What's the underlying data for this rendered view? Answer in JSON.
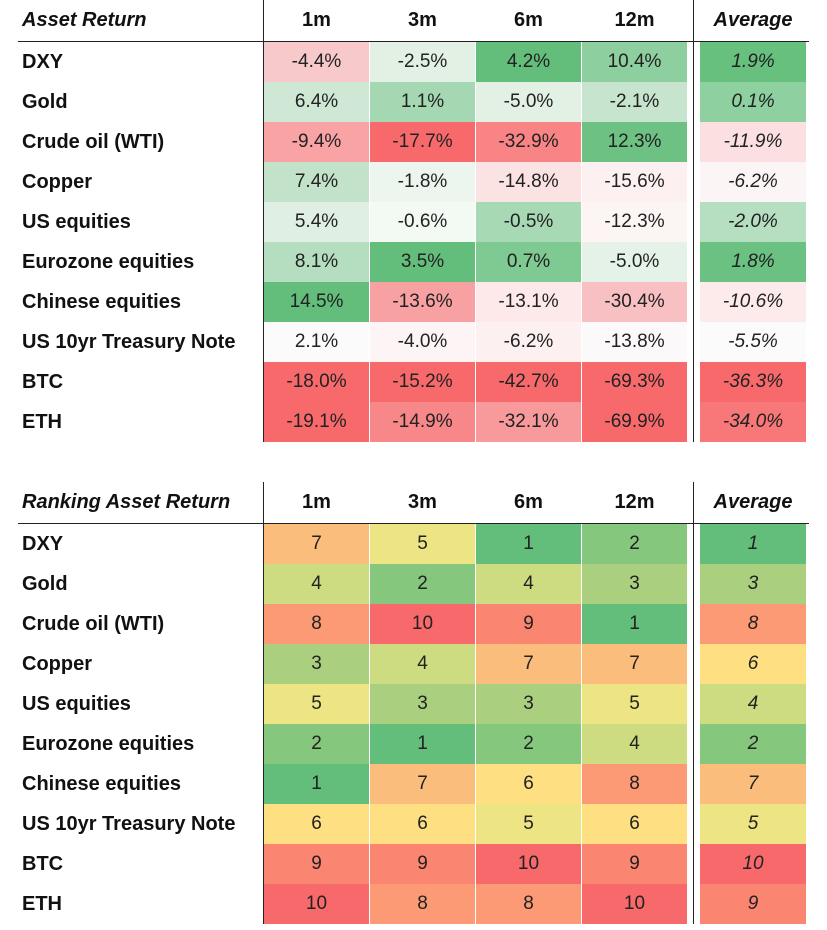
{
  "chart_data": [
    {
      "type": "table",
      "title": "Asset Return",
      "columns": [
        "1m",
        "3m",
        "6m",
        "12m",
        "Average"
      ],
      "rows": [
        {
          "label": "DXY",
          "values": [
            "-4.4%",
            "-2.5%",
            "4.2%",
            "10.4%",
            "1.9%"
          ]
        },
        {
          "label": "Gold",
          "values": [
            "6.4%",
            "1.1%",
            "-5.0%",
            "-2.1%",
            "0.1%"
          ]
        },
        {
          "label": "Crude oil (WTI)",
          "values": [
            "-9.4%",
            "-17.7%",
            "-32.9%",
            "12.3%",
            "-11.9%"
          ]
        },
        {
          "label": "Copper",
          "values": [
            "7.4%",
            "-1.8%",
            "-14.8%",
            "-15.6%",
            "-6.2%"
          ]
        },
        {
          "label": "US equities",
          "values": [
            "5.4%",
            "-0.6%",
            "-0.5%",
            "-12.3%",
            "-2.0%"
          ]
        },
        {
          "label": "Eurozone equities",
          "values": [
            "8.1%",
            "3.5%",
            "0.7%",
            "-5.0%",
            "1.8%"
          ]
        },
        {
          "label": "Chinese equities",
          "values": [
            "14.5%",
            "-13.6%",
            "-13.1%",
            "-30.4%",
            "-10.6%"
          ]
        },
        {
          "label": "US 10yr Treasury Note",
          "values": [
            "2.1%",
            "-4.0%",
            "-6.2%",
            "-13.8%",
            "-5.5%"
          ]
        },
        {
          "label": "BTC",
          "values": [
            "-18.0%",
            "-15.2%",
            "-42.7%",
            "-69.3%",
            "-36.3%"
          ]
        },
        {
          "label": "ETH",
          "values": [
            "-19.1%",
            "-14.9%",
            "-32.1%",
            "-69.9%",
            "-34.0%"
          ]
        }
      ],
      "colors": [
        [
          "#f8c9cb",
          "#e3f1e5",
          "#63be7b",
          "#8ecf9f",
          "#68c07f"
        ],
        [
          "#cfe8d5",
          "#a5d8b2",
          "#e3f1e5",
          "#c7e5ce",
          "#8fd0a0"
        ],
        [
          "#f9a3a5",
          "#f8696b",
          "#f88486",
          "#6cc183",
          "#fbdfe1"
        ],
        [
          "#c2e3ca",
          "#edf6ee",
          "#fbe3e4",
          "#fdf0f0",
          "#fcf5f6"
        ],
        [
          "#e0efe3",
          "#f3f9f3",
          "#a8d9b5",
          "#fdf4f4",
          "#b6deC0"
        ],
        [
          "#b5ddbf",
          "#63be7b",
          "#7fc993",
          "#e5f2e7",
          "#6ac181"
        ],
        [
          "#63be7b",
          "#f8a1a3",
          "#fde9ea",
          "#f8c0c2",
          "#fdeaeb"
        ],
        [
          "#fafbfa",
          "#fdf5f5",
          "#fdf0f1",
          "#fbf9f9",
          "#fbfbfb"
        ],
        [
          "#f8696b",
          "#f8696b",
          "#f8696b",
          "#f8696b",
          "#f8696b"
        ],
        [
          "#f8696b",
          "#f8878a",
          "#f89a9c",
          "#f8696b",
          "#f87779"
        ]
      ]
    },
    {
      "type": "table",
      "title": "Ranking Asset Return",
      "columns": [
        "1m",
        "3m",
        "6m",
        "12m",
        "Average"
      ],
      "rows": [
        {
          "label": "DXY",
          "values": [
            "7",
            "5",
            "1",
            "2",
            "1"
          ]
        },
        {
          "label": "Gold",
          "values": [
            "4",
            "2",
            "4",
            "3",
            "3"
          ]
        },
        {
          "label": "Crude oil (WTI)",
          "values": [
            "8",
            "10",
            "9",
            "1",
            "8"
          ]
        },
        {
          "label": "Copper",
          "values": [
            "3",
            "4",
            "7",
            "7",
            "6"
          ]
        },
        {
          "label": "US equities",
          "values": [
            "5",
            "3",
            "3",
            "5",
            "4"
          ]
        },
        {
          "label": "Eurozone equities",
          "values": [
            "2",
            "1",
            "2",
            "4",
            "2"
          ]
        },
        {
          "label": "Chinese equities",
          "values": [
            "1",
            "7",
            "6",
            "8",
            "7"
          ]
        },
        {
          "label": "US 10yr Treasury Note",
          "values": [
            "6",
            "6",
            "5",
            "6",
            "5"
          ]
        },
        {
          "label": "BTC",
          "values": [
            "9",
            "9",
            "10",
            "9",
            "10"
          ]
        },
        {
          "label": "ETH",
          "values": [
            "10",
            "8",
            "8",
            "10",
            "9"
          ]
        }
      ],
      "colors": [
        [
          "#fbbd7b",
          "#ede583",
          "#63be7b",
          "#85c77d",
          "#63be7b"
        ],
        [
          "#cddc81",
          "#85c77d",
          "#cddc81",
          "#aad07f",
          "#aad07f"
        ],
        [
          "#fb9a74",
          "#f8696b",
          "#fa8570",
          "#63be7b",
          "#fb9a74"
        ],
        [
          "#aad07f",
          "#cddc81",
          "#fbbd7b",
          "#fbbd7b",
          "#fee082"
        ],
        [
          "#ede583",
          "#aad07f",
          "#aad07f",
          "#ede583",
          "#cddc81"
        ],
        [
          "#85c77d",
          "#63be7b",
          "#85c77d",
          "#cddc81",
          "#85c77d"
        ],
        [
          "#63be7b",
          "#fbbd7b",
          "#fee082",
          "#fb9a74",
          "#fbbd7b"
        ],
        [
          "#fee082",
          "#fee082",
          "#ede583",
          "#fee082",
          "#ede583"
        ],
        [
          "#fa8570",
          "#fa8570",
          "#f8696b",
          "#fa8570",
          "#f8696b"
        ],
        [
          "#f8696b",
          "#fb9a74",
          "#fb9a74",
          "#f8696b",
          "#fa8570"
        ]
      ]
    }
  ]
}
